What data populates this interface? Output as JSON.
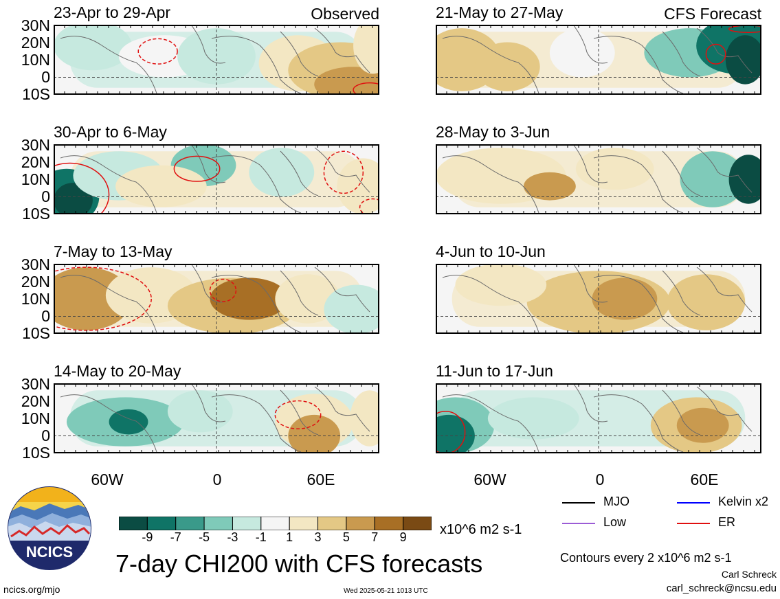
{
  "panels": [
    {
      "title": "23-Apr to 29-Apr",
      "corner": "Observed"
    },
    {
      "title": "30-Apr to 6-May",
      "corner": ""
    },
    {
      "title": "7-May to 13-May",
      "corner": ""
    },
    {
      "title": "14-May to 20-May",
      "corner": ""
    },
    {
      "title": "21-May to 27-May",
      "corner": "CFS Forecast"
    },
    {
      "title": "28-May to 3-Jun",
      "corner": ""
    },
    {
      "title": "4-Jun to 10-Jun",
      "corner": ""
    },
    {
      "title": "11-Jun to 17-Jun",
      "corner": ""
    }
  ],
  "lat_labels": [
    "30N",
    "20N",
    "10N",
    "0",
    "10S"
  ],
  "lon_labels": [
    "60W",
    "0",
    "60E"
  ],
  "colorbar": {
    "colors": [
      "#0b4c43",
      "#0f7466",
      "#3a9a8a",
      "#7fcab9",
      "#c6e9df",
      "#f5f5f5",
      "#f3e7c3",
      "#e4c885",
      "#c99a4f",
      "#a86f25",
      "#7a4a14"
    ],
    "labels": [
      "-9",
      "-7",
      "-5",
      "-3",
      "-1",
      "1",
      "3",
      "5",
      "7",
      "9"
    ],
    "units": "x10^6 m2 s-1"
  },
  "legend": [
    {
      "label": "MJO",
      "color": "#000000"
    },
    {
      "label": "Kelvin x2",
      "color": "#0000ff"
    },
    {
      "label": "Low",
      "color": "#9b5cd6"
    },
    {
      "label": "ER",
      "color": "#e01010"
    }
  ],
  "main_title": "7-day CHI200 with CFS forecasts",
  "contour_note": "Contours every 2 x10^6 m2 s-1",
  "logo_text": "NCICS",
  "footer_left": "ncics.org/mjo",
  "footer_center": "Wed 2025-05-21 1013 UTC",
  "author": "Carl Schreck",
  "email": "carl_schreck@ncsu.edu",
  "chart_data": {
    "type": "heatmap",
    "title": "7-day CHI200 with CFS forecasts",
    "variable": "CHI200",
    "units": "x10^6 m2 s-1",
    "lat_range": [
      "10S",
      "30N"
    ],
    "lon_ticks": [
      "60W",
      "0",
      "60E"
    ],
    "color_levels": [
      -9,
      -7,
      -5,
      -3,
      -1,
      1,
      3,
      5,
      7,
      9
    ],
    "panels": [
      {
        "period": "23-Apr to 29-Apr",
        "source": "Observed"
      },
      {
        "period": "30-Apr to 6-May",
        "source": "Observed"
      },
      {
        "period": "7-May to 13-May",
        "source": "Observed"
      },
      {
        "period": "14-May to 20-May",
        "source": "Observed"
      },
      {
        "period": "21-May to 27-May",
        "source": "CFS Forecast"
      },
      {
        "period": "28-May to 3-Jun",
        "source": "CFS Forecast"
      },
      {
        "period": "4-Jun to 10-Jun",
        "source": "CFS Forecast"
      },
      {
        "period": "11-Jun to 17-Jun",
        "source": "CFS Forecast"
      }
    ]
  }
}
